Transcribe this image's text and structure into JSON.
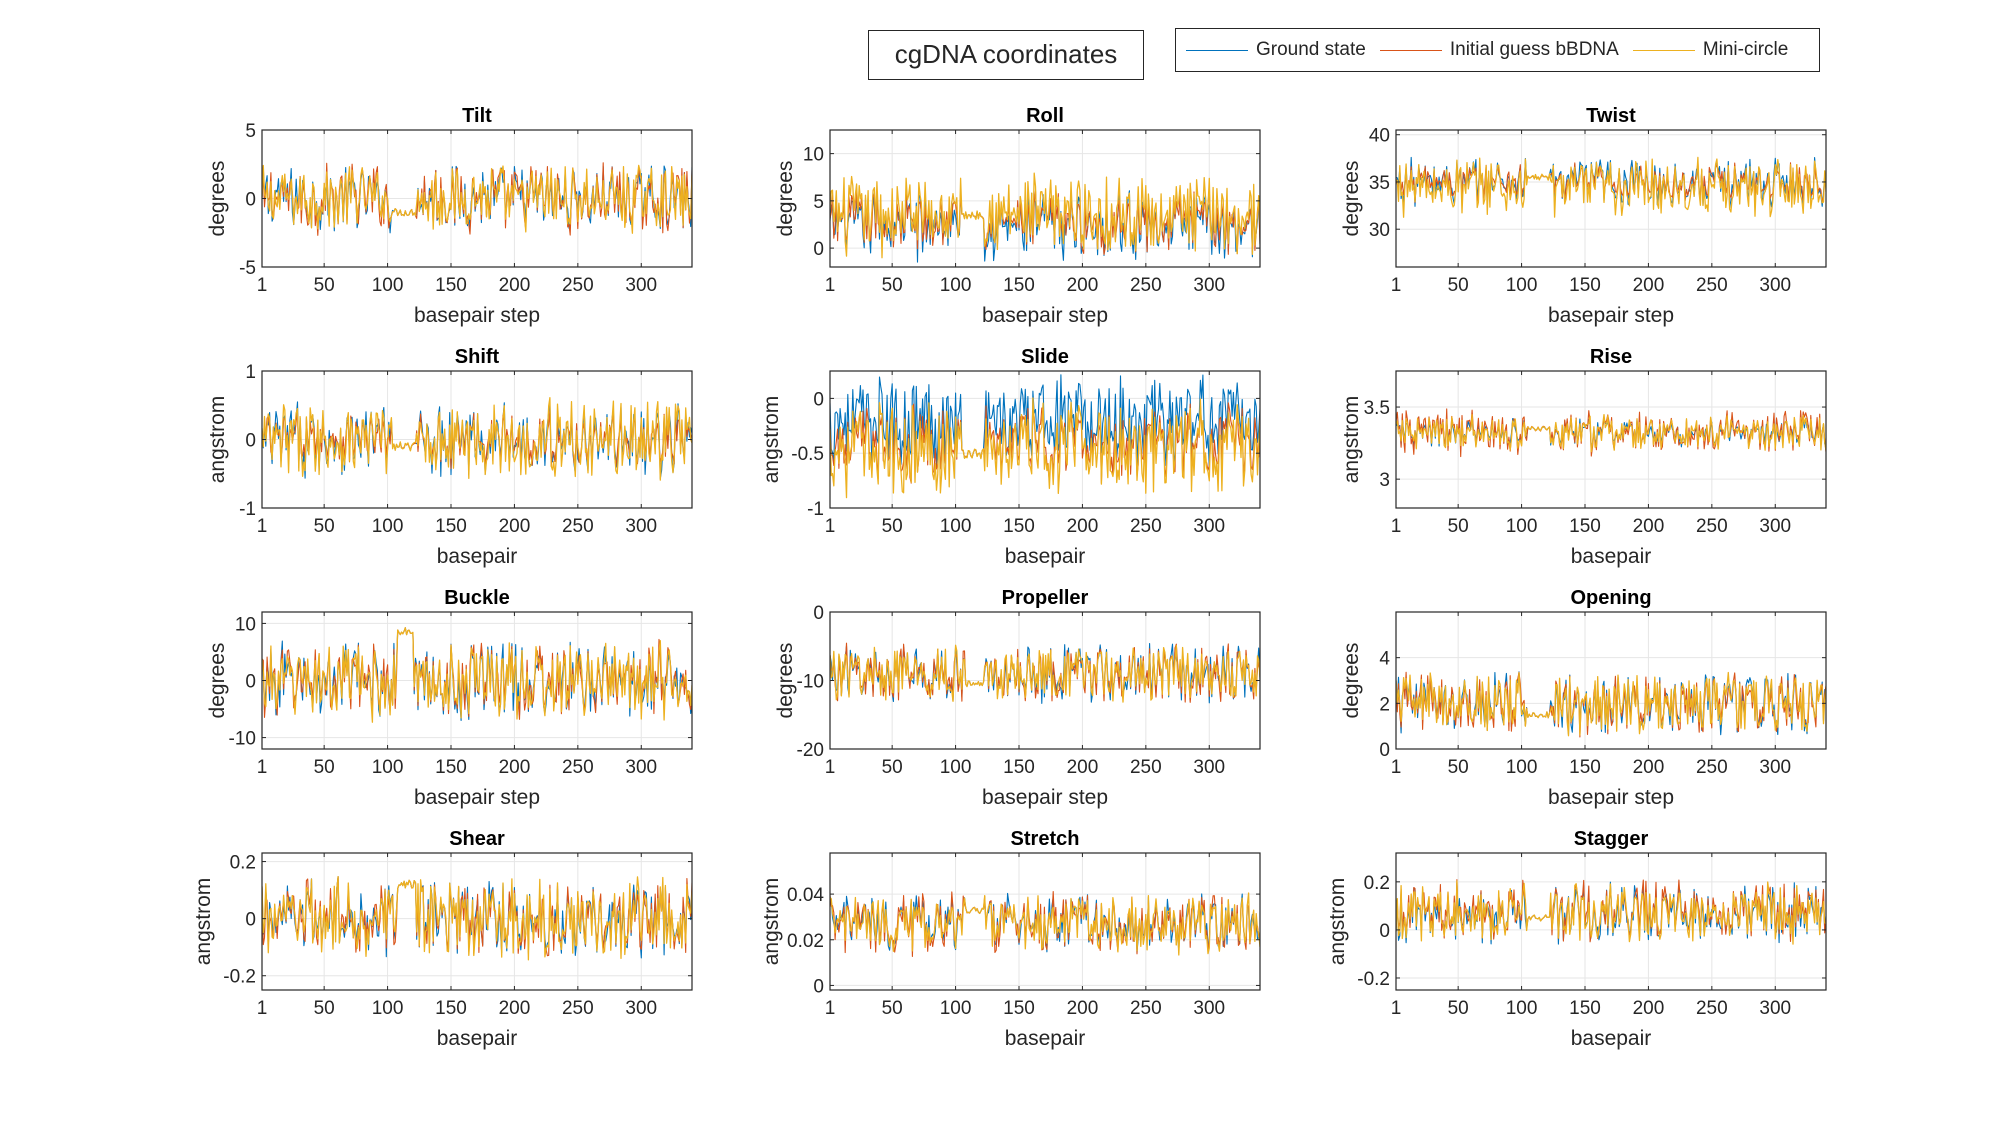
{
  "figure": {
    "title": "cgDNA coordinates",
    "legend": [
      {
        "name": "Ground state",
        "color": "#0072BD"
      },
      {
        "name": "Initial guess bBDNA",
        "color": "#D95319"
      },
      {
        "name": "Mini-circle",
        "color": "#EDB120"
      }
    ]
  },
  "chart_data": [
    {
      "type": "line",
      "title": "Tilt",
      "xlabel": "basepair step",
      "ylabel": "degrees",
      "xlim": [
        1,
        340
      ],
      "ylim": [
        -5,
        5
      ],
      "xticks": [
        1,
        50,
        100,
        150,
        200,
        250,
        300
      ],
      "yticks": [
        -5,
        0,
        5
      ],
      "series": [
        {
          "name": "Ground state",
          "center": 0.0,
          "amplitude": 2.3
        },
        {
          "name": "Initial guess bBDNA",
          "center": 0.0,
          "amplitude": 2.4
        },
        {
          "name": "Mini-circle",
          "center": 0.0,
          "amplitude": 2.3
        }
      ],
      "flat_segment": {
        "x": [
          105,
          122
        ],
        "value": -1.0
      }
    },
    {
      "type": "line",
      "title": "Roll",
      "xlabel": "basepair step",
      "ylabel": "degrees",
      "xlim": [
        1,
        340
      ],
      "ylim": [
        -2,
        12.5
      ],
      "xticks": [
        1,
        50,
        100,
        150,
        200,
        250,
        300
      ],
      "yticks": [
        0,
        5,
        10
      ],
      "series": [
        {
          "name": "Ground state",
          "center": 2.5,
          "amplitude": 3.5
        },
        {
          "name": "Initial guess bBDNA",
          "center": 2.8,
          "amplitude": 3.2
        },
        {
          "name": "Mini-circle",
          "center": 3.5,
          "amplitude": 4.0
        }
      ],
      "flat_segment": {
        "x": [
          105,
          122
        ],
        "value": 3.5
      }
    },
    {
      "type": "line",
      "title": "Twist",
      "xlabel": "basepair step",
      "ylabel": "degrees",
      "xlim": [
        1,
        340
      ],
      "ylim": [
        26,
        40.5
      ],
      "xticks": [
        1,
        50,
        100,
        150,
        200,
        250,
        300
      ],
      "yticks": [
        30,
        35,
        40
      ],
      "series": [
        {
          "name": "Ground state",
          "center": 35.0,
          "amplitude": 2.5
        },
        {
          "name": "Initial guess bBDNA",
          "center": 35.0,
          "amplitude": 2.0
        },
        {
          "name": "Mini-circle",
          "center": 34.5,
          "amplitude": 3.0
        }
      ],
      "flat_segment": {
        "x": [
          105,
          122
        ],
        "value": 35.5
      }
    },
    {
      "type": "line",
      "title": "Shift",
      "xlabel": "basepair",
      "ylabel": "angstrom",
      "xlim": [
        1,
        340
      ],
      "ylim": [
        -1,
        1
      ],
      "xticks": [
        1,
        50,
        100,
        150,
        200,
        250,
        300
      ],
      "yticks": [
        -1,
        0,
        1
      ],
      "series": [
        {
          "name": "Ground state",
          "center": 0.0,
          "amplitude": 0.5
        },
        {
          "name": "Initial guess bBDNA",
          "center": 0.0,
          "amplitude": 0.4
        },
        {
          "name": "Mini-circle",
          "center": 0.0,
          "amplitude": 0.55
        }
      ],
      "flat_segment": {
        "x": [
          105,
          122
        ],
        "value": -0.1
      }
    },
    {
      "type": "line",
      "title": "Slide",
      "xlabel": "basepair",
      "ylabel": "angstrom",
      "xlim": [
        1,
        340
      ],
      "ylim": [
        -1,
        0.25
      ],
      "xticks": [
        1,
        50,
        100,
        150,
        200,
        250,
        300
      ],
      "yticks": [
        -1,
        -0.5,
        0
      ],
      "series": [
        {
          "name": "Ground state",
          "center": -0.2,
          "amplitude": 0.4
        },
        {
          "name": "Initial guess bBDNA",
          "center": -0.4,
          "amplitude": 0.35
        },
        {
          "name": "Mini-circle",
          "center": -0.45,
          "amplitude": 0.42
        }
      ],
      "flat_segment": {
        "x": [
          105,
          122
        ],
        "value": -0.5
      }
    },
    {
      "type": "line",
      "title": "Rise",
      "xlabel": "basepair",
      "ylabel": "angstrom",
      "xlim": [
        1,
        340
      ],
      "ylim": [
        2.8,
        3.75
      ],
      "xticks": [
        1,
        50,
        100,
        150,
        200,
        250,
        300
      ],
      "yticks": [
        3,
        3.5
      ],
      "series": [
        {
          "name": "Ground state",
          "center": 3.32,
          "amplitude": 0.1
        },
        {
          "name": "Initial guess bBDNA",
          "center": 3.32,
          "amplitude": 0.15
        },
        {
          "name": "Mini-circle",
          "center": 3.32,
          "amplitude": 0.12
        }
      ],
      "flat_segment": {
        "x": [
          105,
          122
        ],
        "value": 3.35
      }
    },
    {
      "type": "line",
      "title": "Buckle",
      "xlabel": "basepair step",
      "ylabel": "degrees",
      "xlim": [
        1,
        340
      ],
      "ylim": [
        -12,
        12
      ],
      "xticks": [
        1,
        50,
        100,
        150,
        200,
        250,
        300
      ],
      "yticks": [
        -10,
        0,
        10
      ],
      "series": [
        {
          "name": "Ground state",
          "center": 0.0,
          "amplitude": 6.5
        },
        {
          "name": "Initial guess bBDNA",
          "center": 0.0,
          "amplitude": 6.5
        },
        {
          "name": "Mini-circle",
          "center": 0.0,
          "amplitude": 6.5
        }
      ],
      "flat_segment": {
        "x": [
          108,
          120
        ],
        "value": 8.5
      }
    },
    {
      "type": "line",
      "title": "Propeller",
      "xlabel": "basepair step",
      "ylabel": "degrees",
      "xlim": [
        1,
        340
      ],
      "ylim": [
        -20,
        0
      ],
      "xticks": [
        1,
        50,
        100,
        150,
        200,
        250,
        300
      ],
      "yticks": [
        -20,
        -10,
        0
      ],
      "series": [
        {
          "name": "Ground state",
          "center": -9.0,
          "amplitude": 4.0
        },
        {
          "name": "Initial guess bBDNA",
          "center": -9.0,
          "amplitude": 4.0
        },
        {
          "name": "Mini-circle",
          "center": -9.0,
          "amplitude": 4.0
        }
      ],
      "flat_segment": {
        "x": [
          108,
          122
        ],
        "value": -10.5
      }
    },
    {
      "type": "line",
      "title": "Opening",
      "xlabel": "basepair step",
      "ylabel": "degrees",
      "xlim": [
        1,
        340
      ],
      "ylim": [
        0,
        6
      ],
      "xticks": [
        1,
        50,
        100,
        150,
        200,
        250,
        300
      ],
      "yticks": [
        0,
        2,
        4
      ],
      "series": [
        {
          "name": "Ground state",
          "center": 2.0,
          "amplitude": 1.3
        },
        {
          "name": "Initial guess bBDNA",
          "center": 2.0,
          "amplitude": 1.3
        },
        {
          "name": "Mini-circle",
          "center": 2.0,
          "amplitude": 1.3
        }
      ],
      "flat_segment": {
        "x": [
          105,
          122
        ],
        "value": 1.5
      }
    },
    {
      "type": "line",
      "title": "Shear",
      "xlabel": "basepair",
      "ylabel": "angstrom",
      "xlim": [
        1,
        340
      ],
      "ylim": [
        -0.25,
        0.23
      ],
      "xticks": [
        1,
        50,
        100,
        150,
        200,
        250,
        300
      ],
      "yticks": [
        -0.2,
        0,
        0.2
      ],
      "series": [
        {
          "name": "Ground state",
          "center": 0.0,
          "amplitude": 0.13
        },
        {
          "name": "Initial guess bBDNA",
          "center": 0.0,
          "amplitude": 0.13
        },
        {
          "name": "Mini-circle",
          "center": 0.0,
          "amplitude": 0.13
        }
      ],
      "flat_segment": {
        "x": [
          108,
          122
        ],
        "value": 0.12
      }
    },
    {
      "type": "line",
      "title": "Stretch",
      "xlabel": "basepair",
      "ylabel": "angstrom",
      "xlim": [
        1,
        340
      ],
      "ylim": [
        -0.002,
        0.058
      ],
      "xticks": [
        1,
        50,
        100,
        150,
        200,
        250,
        300
      ],
      "yticks": [
        0,
        0.02,
        0.04
      ],
      "series": [
        {
          "name": "Ground state",
          "center": 0.027,
          "amplitude": 0.012
        },
        {
          "name": "Initial guess bBDNA",
          "center": 0.027,
          "amplitude": 0.013
        },
        {
          "name": "Mini-circle",
          "center": 0.027,
          "amplitude": 0.012
        }
      ],
      "flat_segment": {
        "x": [
          108,
          122
        ],
        "value": 0.033
      }
    },
    {
      "type": "line",
      "title": "Stagger",
      "xlabel": "basepair",
      "ylabel": "angstrom",
      "xlim": [
        1,
        340
      ],
      "ylim": [
        -0.25,
        0.32
      ],
      "xticks": [
        1,
        50,
        100,
        150,
        200,
        250,
        300
      ],
      "yticks": [
        -0.2,
        0,
        0.2
      ],
      "series": [
        {
          "name": "Ground state",
          "center": 0.07,
          "amplitude": 0.12
        },
        {
          "name": "Initial guess bBDNA",
          "center": 0.08,
          "amplitude": 0.12
        },
        {
          "name": "Mini-circle",
          "center": 0.07,
          "amplitude": 0.12
        }
      ],
      "flat_segment": {
        "x": [
          105,
          122
        ],
        "value": 0.05
      }
    }
  ]
}
